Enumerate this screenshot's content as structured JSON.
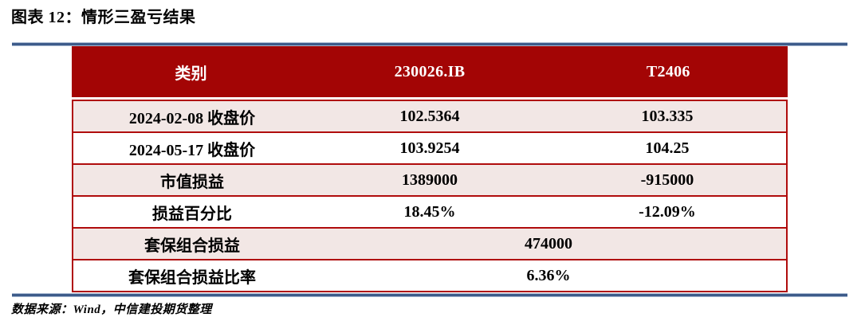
{
  "figure": {
    "title": "图表  12：情形三盈亏结果",
    "source": "数据来源：Wind，中信建投期货整理"
  },
  "table": {
    "columns": [
      "类别",
      "230026.IB",
      "T2406"
    ],
    "rows": [
      {
        "label": "2024-02-08 收盘价",
        "values": [
          "102.5364",
          "103.335"
        ],
        "merged": false
      },
      {
        "label": "2024-05-17 收盘价",
        "values": [
          "103.9254",
          "104.25"
        ],
        "merged": false
      },
      {
        "label": "市值损益",
        "values": [
          "1389000",
          "-915000"
        ],
        "merged": false
      },
      {
        "label": "损益百分比",
        "values": [
          "18.45%",
          "-12.09%"
        ],
        "merged": false
      },
      {
        "label": "套保组合损益",
        "values": [
          "474000"
        ],
        "merged": true
      },
      {
        "label": "套保组合损益比率",
        "values": [
          "6.36%"
        ],
        "merged": true
      }
    ]
  },
  "colors": {
    "header_bg": "#a30505",
    "row_alt_bg": "#f2e7e5",
    "table_border": "#b00c0c",
    "rule_blue": "#3d5b8a",
    "header_text": "#ffffff",
    "body_text": "#000000"
  }
}
